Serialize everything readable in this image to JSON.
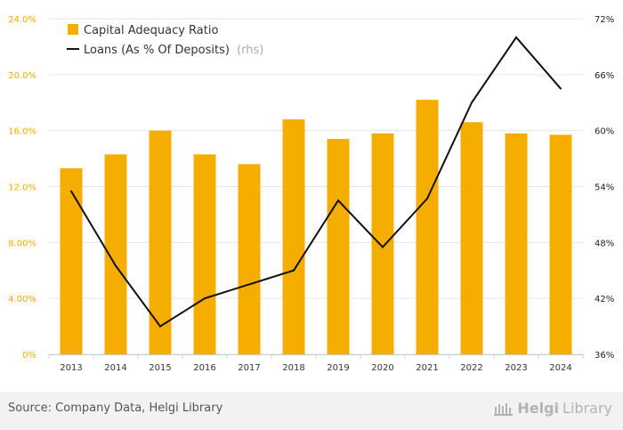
{
  "chart_data": {
    "type": "bar+line",
    "categories": [
      "2013",
      "2014",
      "2015",
      "2016",
      "2017",
      "2018",
      "2019",
      "2020",
      "2021",
      "2022",
      "2023",
      "2024"
    ],
    "series": [
      {
        "name": "Capital Adequacy Ratio",
        "type": "bar",
        "axis": "left",
        "color": "#f5ad00",
        "values": [
          13.3,
          14.3,
          16.0,
          14.3,
          13.6,
          16.8,
          15.4,
          15.8,
          18.2,
          16.6,
          15.8,
          15.7
        ]
      },
      {
        "name": "Loans (As % Of Deposits)",
        "name_suffix": "(rhs)",
        "type": "line",
        "axis": "right",
        "color": "#111111",
        "values": [
          53.5,
          45.5,
          39.0,
          42.0,
          43.5,
          45.0,
          52.5,
          47.5,
          52.7,
          63.0,
          70.0,
          64.5
        ]
      }
    ],
    "y_left": {
      "min": 0,
      "max": 24,
      "ticks": [
        0,
        4,
        8,
        12,
        16,
        20,
        24
      ],
      "tick_labels": [
        "0%",
        "4.00%",
        "8.00%",
        "12.0%",
        "16.0%",
        "20.0%",
        "24.0%"
      ]
    },
    "y_right": {
      "min": 36,
      "max": 72,
      "ticks": [
        36,
        42,
        48,
        54,
        60,
        66,
        72
      ],
      "tick_labels": [
        "36%",
        "42%",
        "48%",
        "54%",
        "60%",
        "66%",
        "72%"
      ]
    },
    "legend_position": "top-left",
    "grid": true
  },
  "colors": {
    "bar": "#f5ad00",
    "left_axis_text": "#f5ad00",
    "line": "#111111",
    "grid": "#e6e6e6"
  },
  "footer": {
    "source": "Source: Company Data, Helgi Library",
    "brand_bold": "Helgi",
    "brand_light": "Library"
  }
}
